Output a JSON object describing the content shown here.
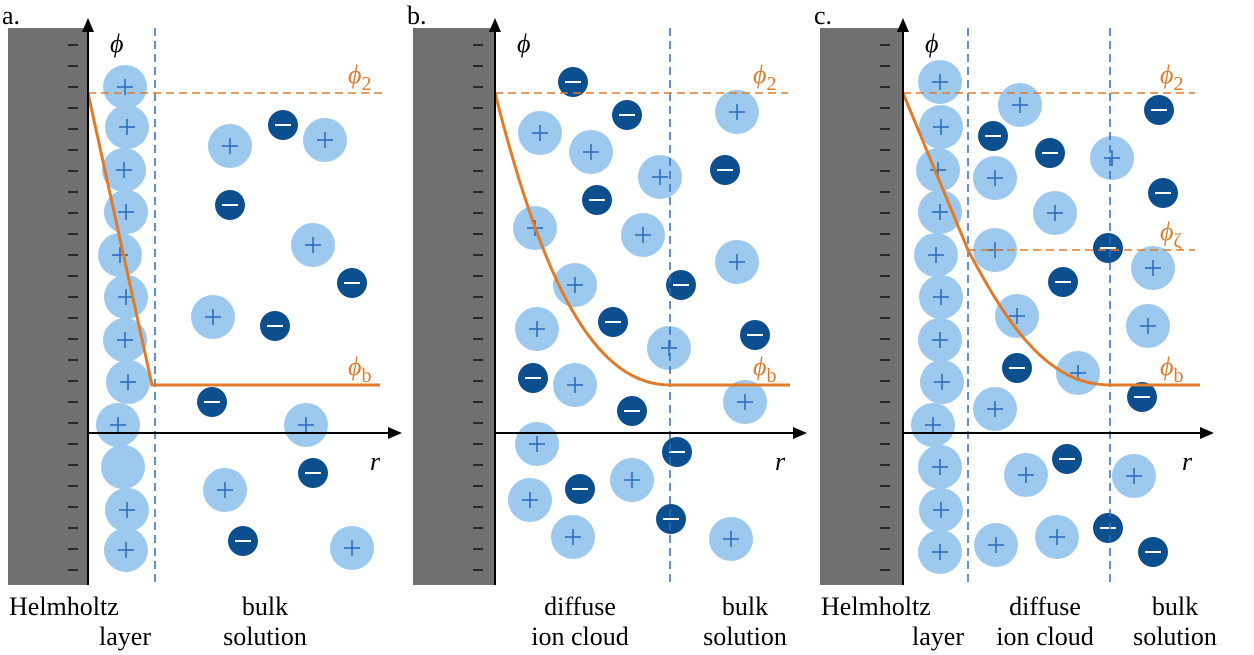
{
  "panels": [
    {
      "label": "a.",
      "y_label": "ϕ",
      "x_label": "r",
      "levels": [
        {
          "symbol": "ϕ",
          "subscript": "2"
        },
        {
          "symbol": "ϕ",
          "subscript": "b"
        }
      ],
      "regions": [
        {
          "lines": [
            "Helmholtz",
            "layer"
          ]
        },
        {
          "lines": [
            "bulk",
            "solution"
          ]
        }
      ]
    },
    {
      "label": "b.",
      "y_label": "ϕ",
      "x_label": "r",
      "levels": [
        {
          "symbol": "ϕ",
          "subscript": "2"
        },
        {
          "symbol": "ϕ",
          "subscript": "b"
        }
      ],
      "regions": [
        {
          "lines": [
            "diffuse",
            "ion cloud"
          ]
        },
        {
          "lines": [
            "bulk",
            "solution"
          ]
        }
      ]
    },
    {
      "label": "c.",
      "y_label": "ϕ",
      "x_label": "r",
      "levels": [
        {
          "symbol": "ϕ",
          "subscript": "2"
        },
        {
          "symbol": "ϕ",
          "subscript": "ζ"
        },
        {
          "symbol": "ϕ",
          "subscript": "b"
        }
      ],
      "regions": [
        {
          "lines": [
            "Helmholtz",
            "layer"
          ]
        },
        {
          "lines": [
            "diffuse",
            "ion cloud"
          ]
        },
        {
          "lines": [
            "bulk",
            "solution"
          ]
        }
      ]
    }
  ]
}
